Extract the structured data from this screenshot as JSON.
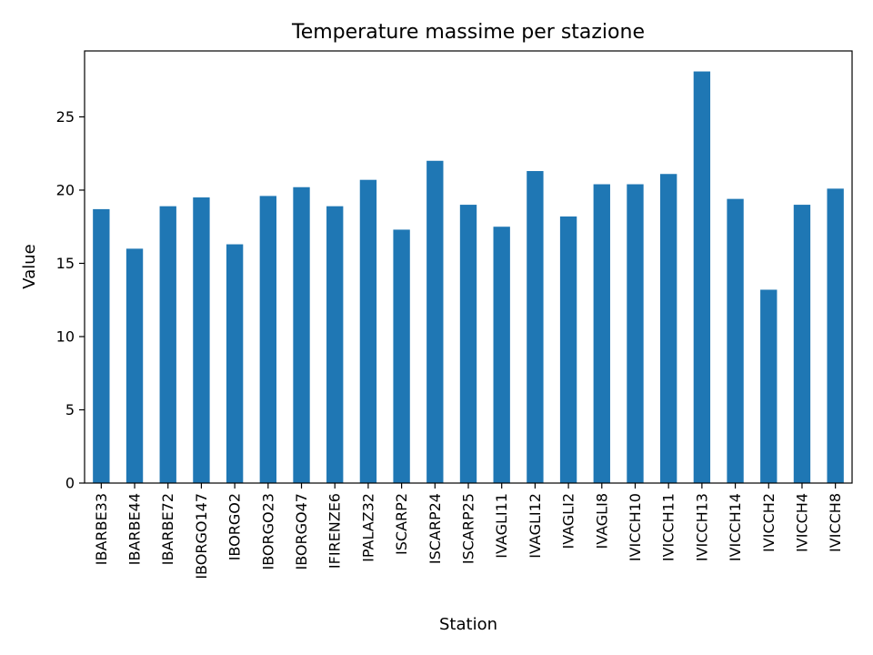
{
  "chart_data": {
    "type": "bar",
    "title": "Temperature massime per stazione",
    "xlabel": "Station",
    "ylabel": "Value",
    "categories": [
      "IBARBE33",
      "IBARBE44",
      "IBARBE72",
      "IBORGO147",
      "IBORGO2",
      "IBORGO23",
      "IBORGO47",
      "IFIRENZE6",
      "IPALAZ32",
      "ISCARP2",
      "ISCARP24",
      "ISCARP25",
      "IVAGLI11",
      "IVAGLI12",
      "IVAGLI2",
      "IVAGLI8",
      "IVICCH10",
      "IVICCH11",
      "IVICCH13",
      "IVICCH14",
      "IVICCH2",
      "IVICCH4",
      "IVICCH8"
    ],
    "values": [
      18.7,
      16.0,
      18.9,
      19.5,
      16.3,
      19.6,
      20.2,
      18.9,
      20.7,
      17.3,
      22.0,
      19.0,
      17.5,
      21.3,
      18.2,
      20.4,
      20.4,
      21.1,
      28.1,
      19.4,
      13.2,
      19.0,
      20.1
    ],
    "yticks": [
      0,
      5,
      10,
      15,
      20,
      25
    ],
    "ylim": [
      0,
      29.5
    ],
    "grid": false,
    "color": "#1f77b4"
  }
}
